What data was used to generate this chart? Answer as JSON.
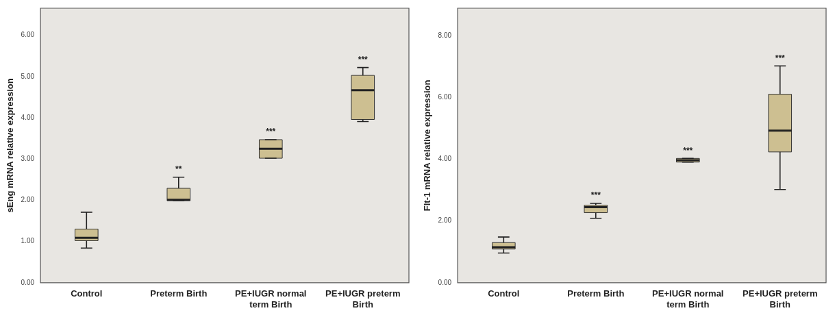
{
  "chart_data": [
    {
      "type": "box",
      "ylabel": "sEng mRNA relative expression",
      "categories": [
        "Control",
        "Preterm Birth",
        "PE+IUGR normal term Birth",
        "PE+IUGR preterm Birth"
      ],
      "series": [
        {
          "color": "#cdbf91",
          "boxes": [
            {
              "low": 0.84,
              "q1": 1.02,
              "median": 1.09,
              "q3": 1.3,
              "high": 1.71
            },
            {
              "low": 1.99,
              "q1": 1.99,
              "median": 2.01,
              "q3": 2.29,
              "high": 2.56
            },
            {
              "low": 3.02,
              "q1": 3.02,
              "median": 3.25,
              "q3": 3.47,
              "high": 3.47
            },
            {
              "low": 3.91,
              "q1": 3.96,
              "median": 4.67,
              "q3": 5.03,
              "high": 5.22
            }
          ]
        }
      ],
      "ylim": [
        0,
        6.66
      ],
      "yticks": [
        {
          "value": 0,
          "label": "0.00"
        },
        {
          "value": 1,
          "label": "1.00"
        },
        {
          "value": 2,
          "label": "2.00"
        },
        {
          "value": 3,
          "label": "3.00"
        },
        {
          "value": 4,
          "label": "4.00"
        },
        {
          "value": 5,
          "label": "5.00"
        },
        {
          "value": 6,
          "label": "6.00"
        }
      ],
      "annotations": [
        {
          "text": "**",
          "x": "Preterm Birth",
          "y": 2.56
        },
        {
          "text": "***",
          "x": "PE+IUGR normal term Birth",
          "y": 3.47
        },
        {
          "text": "***",
          "x": "PE+IUGR preterm Birth",
          "y": 5.22
        }
      ]
    },
    {
      "type": "box",
      "ylabel": "Flt-1 mRNA relative expression",
      "categories": [
        "Control",
        "Preterm Birth",
        "PE+IUGR normal term Birth",
        "PE+IUGR preterm Birth"
      ],
      "series": [
        {
          "color": "#cdbf91",
          "boxes": [
            {
              "low": 0.96,
              "q1": 1.09,
              "median": 1.15,
              "q3": 1.3,
              "high": 1.48
            },
            {
              "low": 2.09,
              "q1": 2.27,
              "median": 2.45,
              "q3": 2.51,
              "high": 2.57
            },
            {
              "low": 3.91,
              "q1": 3.91,
              "median": 3.97,
              "q3": 4.03,
              "high": 4.03
            },
            {
              "low": 3.02,
              "q1": 4.24,
              "median": 4.93,
              "q3": 6.11,
              "high": 7.03
            }
          ]
        }
      ],
      "ylim": [
        0,
        8.9
      ],
      "yticks": [
        {
          "value": 0,
          "label": "0.00"
        },
        {
          "value": 2,
          "label": "2.00"
        },
        {
          "value": 4,
          "label": "4.00"
        },
        {
          "value": 6,
          "label": "6.00"
        },
        {
          "value": 8,
          "label": "8.00"
        }
      ],
      "annotations": [
        {
          "text": "***",
          "x": "Preterm Birth",
          "y": 2.57
        },
        {
          "text": "***",
          "x": "PE+IUGR normal term Birth",
          "y": 4.03
        },
        {
          "text": "***",
          "x": "PE+IUGR preterm Birth",
          "y": 7.03
        }
      ]
    }
  ]
}
